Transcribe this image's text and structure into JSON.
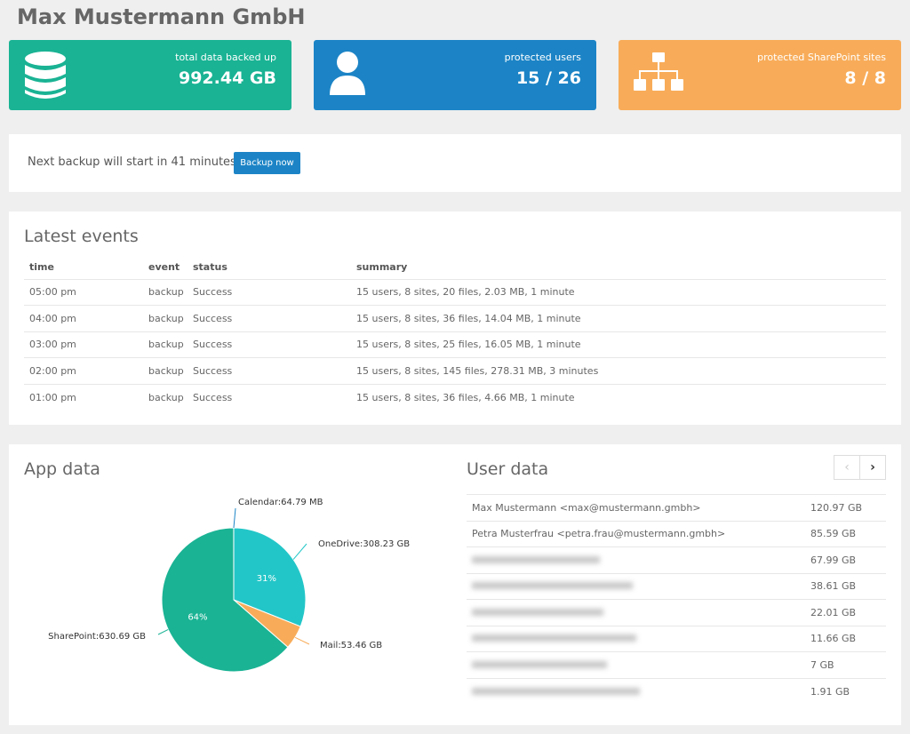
{
  "page": {
    "title": "Max Mustermann GmbH"
  },
  "stats": [
    {
      "label": "total data backed up",
      "value": "992.44 GB",
      "icon": "database-icon",
      "color": "#1ab394"
    },
    {
      "label": "protected users",
      "value": "15 / 26",
      "icon": "user-icon",
      "color": "#1c84c6"
    },
    {
      "label": "protected SharePoint sites",
      "value": "8 / 8",
      "icon": "sitemap-icon",
      "color": "#f8ac59"
    }
  ],
  "backup": {
    "text": "Next backup will start in 41 minutes.",
    "button_label": "Backup now"
  },
  "events": {
    "title": "Latest events",
    "headers": [
      "time",
      "event",
      "status",
      "summary"
    ],
    "rows": [
      [
        "05:00 pm",
        "backup",
        "Success",
        "15 users, 8 sites, 20 files, 2.03 MB, 1 minute"
      ],
      [
        "04:00 pm",
        "backup",
        "Success",
        "15 users, 8 sites, 36 files, 14.04 MB, 1 minute"
      ],
      [
        "03:00 pm",
        "backup",
        "Success",
        "15 users, 8 sites, 25 files, 16.05 MB, 1 minute"
      ],
      [
        "02:00 pm",
        "backup",
        "Success",
        "15 users, 8 sites, 145 files, 278.31 MB, 3 minutes"
      ],
      [
        "01:00 pm",
        "backup",
        "Success",
        "15 users, 8 sites, 36 files, 4.66 MB, 1 minute"
      ]
    ]
  },
  "app_data": {
    "title": "App data"
  },
  "chart_data": {
    "type": "pie",
    "title": "App data",
    "slices": [
      {
        "label": "OneDrive",
        "value_text": "308.23 GB",
        "value": 308.23,
        "pct_label": "31%",
        "color": "#23c6c8"
      },
      {
        "label": "Mail",
        "value_text": "53.46 GB",
        "value": 53.46,
        "pct_label": "",
        "color": "#f8ac59"
      },
      {
        "label": "SharePoint",
        "value_text": "630.69 GB",
        "value": 630.69,
        "pct_label": "64%",
        "color": "#1ab394"
      },
      {
        "label": "Calendar",
        "value_text": "64.79 MB",
        "value": 0.06479,
        "pct_label": "",
        "color": "#1c84c6"
      }
    ]
  },
  "user_data": {
    "title": "User data",
    "prev_icon": "chevron-left-icon",
    "next_icon": "chevron-right-icon",
    "rows": [
      {
        "name": "Max Mustermann <max@mustermann.gmbh>",
        "size": "120.97 GB",
        "blurred": false
      },
      {
        "name": "Petra Musterfrau <petra.frau@mustermann.gmbh>",
        "size": "85.59 GB",
        "blurred": false
      },
      {
        "name": "",
        "size": "67.99 GB",
        "blurred": true
      },
      {
        "name": "",
        "size": "38.61 GB",
        "blurred": true
      },
      {
        "name": "",
        "size": "22.01 GB",
        "blurred": true
      },
      {
        "name": "",
        "size": "11.66 GB",
        "blurred": true
      },
      {
        "name": "",
        "size": "7 GB",
        "blurred": true
      },
      {
        "name": "",
        "size": "1.91 GB",
        "blurred": true
      }
    ]
  }
}
